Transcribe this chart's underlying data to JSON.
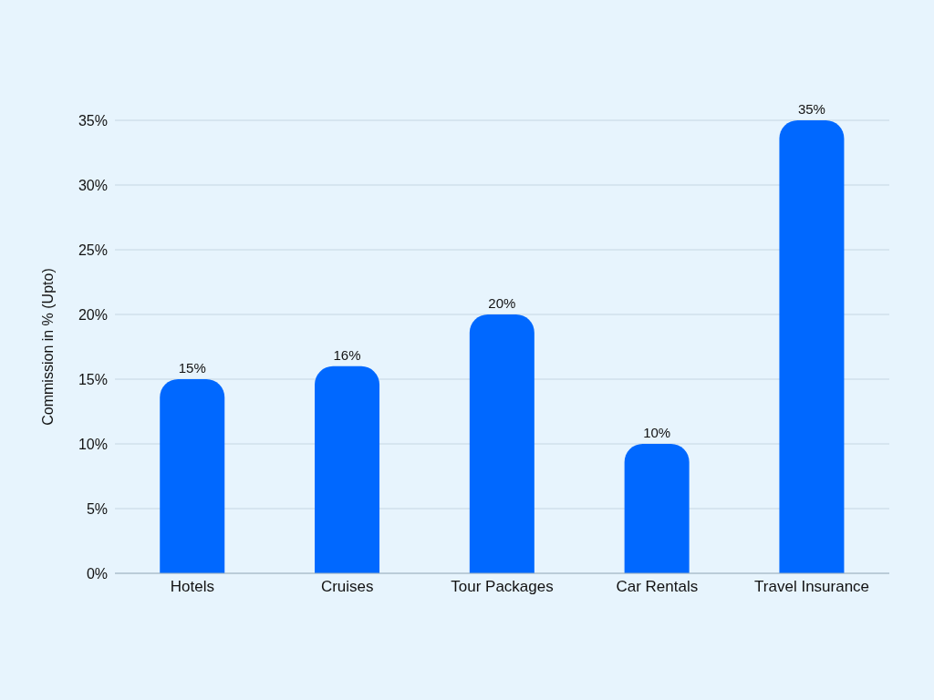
{
  "chart_data": {
    "type": "bar",
    "ylabel": "Commission in % (Upto)",
    "categories": [
      "Hotels",
      "Cruises",
      "Tour Packages",
      "Car Rentals",
      "Travel Insurance"
    ],
    "values": [
      15,
      16,
      20,
      10,
      35
    ],
    "color": "#0068ff",
    "value_labels": [
      "15%",
      "16%",
      "20%",
      "10%",
      "35%"
    ],
    "ylim": [
      0,
      35
    ],
    "yticks": [
      {
        "value": 0,
        "label": "0%"
      },
      {
        "value": 5,
        "label": "5%"
      },
      {
        "value": 10,
        "label": "10%"
      },
      {
        "value": 15,
        "label": "15%"
      },
      {
        "value": 20,
        "label": "20%"
      },
      {
        "value": 25,
        "label": "25%"
      },
      {
        "value": 30,
        "label": "30%"
      },
      {
        "value": 35,
        "label": "35%"
      }
    ],
    "grid": "y",
    "legend": false
  }
}
